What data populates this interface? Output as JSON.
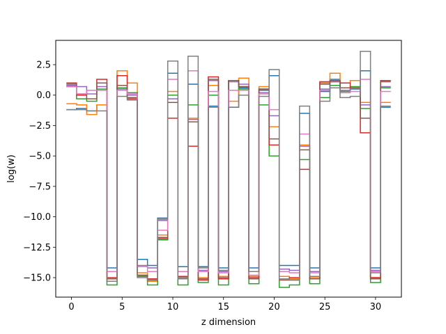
{
  "chart_data": {
    "type": "line",
    "drawstyle": "steps-mid",
    "title": "",
    "xlabel": "z dimension",
    "ylabel": "log(w)",
    "xlim": [
      -1.55,
      32.55
    ],
    "ylim": [
      -16.6,
      4.5
    ],
    "xticks": [
      0,
      5,
      10,
      15,
      20,
      25,
      30
    ],
    "yticks": [
      2.5,
      0.0,
      -2.5,
      -5.0,
      -7.5,
      -10.0,
      -12.5,
      -15.0
    ],
    "ytick_labels": [
      "2.5",
      "0.0",
      "−2.5",
      "−5.0",
      "−7.5",
      "−10.0",
      "−12.5",
      "−15.0"
    ],
    "grid": false,
    "x": [
      0,
      1,
      2,
      3,
      4,
      5,
      6,
      7,
      8,
      9,
      10,
      11,
      12,
      13,
      14,
      15,
      16,
      17,
      18,
      19,
      20,
      21,
      22,
      23,
      24,
      25,
      26,
      27,
      28,
      29,
      30,
      31
    ],
    "series": [
      {
        "color": "#1f77b4",
        "values": [
          -1.2,
          -1.1,
          -1.3,
          -0.8,
          -14.2,
          0.6,
          0.2,
          -13.5,
          -14.0,
          -10.1,
          1.8,
          -14.1,
          0.9,
          -14.1,
          -0.9,
          -14.2,
          -1.0,
          0.6,
          -14.2,
          0.4,
          1.6,
          -14.0,
          -14.0,
          -1.5,
          -14.2,
          0.3,
          1.3,
          0.4,
          0.5,
          2.0,
          -14.2,
          -1.0
        ]
      },
      {
        "color": "#ff7f0e",
        "values": [
          -0.7,
          -0.8,
          -1.6,
          -0.8,
          -15.3,
          2.0,
          1.0,
          -14.6,
          -15.3,
          -11.5,
          0.3,
          -15.1,
          -1.9,
          -15.0,
          0.8,
          -14.9,
          -0.5,
          1.4,
          -14.9,
          0.7,
          -2.6,
          -14.9,
          -15.1,
          -4.1,
          -15.0,
          1.0,
          1.8,
          1.0,
          1.2,
          -0.6,
          -15.0,
          -0.6
        ]
      },
      {
        "color": "#2ca02c",
        "values": [
          0.7,
          -0.3,
          -0.5,
          0.5,
          -15.6,
          0.6,
          0.2,
          -14.9,
          -15.6,
          -11.9,
          0.0,
          -15.6,
          -0.8,
          -15.4,
          0.0,
          -15.6,
          1.2,
          0.5,
          -15.5,
          -0.8,
          -5.0,
          -15.8,
          -15.6,
          -5.3,
          -15.5,
          -0.2,
          0.8,
          0.3,
          0.7,
          -1.1,
          -15.4,
          0.6
        ]
      },
      {
        "color": "#d62728",
        "values": [
          1.0,
          0.0,
          0.4,
          1.3,
          -15.0,
          1.6,
          -0.3,
          -14.8,
          -15.1,
          -11.8,
          -1.9,
          -14.9,
          -4.2,
          -15.2,
          1.5,
          -15.1,
          1.2,
          0.7,
          -15.0,
          0.5,
          -4.1,
          -15.1,
          -15.0,
          -6.1,
          -15.1,
          1.1,
          1.1,
          1.0,
          0.6,
          -3.1,
          -15.0,
          1.2
        ]
      },
      {
        "color": "#9467bd",
        "values": [
          0.8,
          0.7,
          0.1,
          0.7,
          -14.5,
          0.5,
          0.0,
          -14.0,
          -14.2,
          -10.3,
          -0.3,
          -14.5,
          -2.0,
          -14.4,
          1.2,
          -14.5,
          1.1,
          0.9,
          -14.5,
          0.2,
          -1.7,
          -14.3,
          -14.4,
          -4.2,
          -14.5,
          0.5,
          1.1,
          0.4,
          0.6,
          -0.8,
          -14.4,
          0.7
        ]
      },
      {
        "color": "#8c564b",
        "values": [
          0.9,
          0.1,
          -0.3,
          1.0,
          -15.1,
          0.8,
          -0.2,
          -14.8,
          -15.2,
          -11.7,
          -0.6,
          -15.0,
          -2.2,
          -15.1,
          1.3,
          -15.0,
          1.2,
          0.7,
          -15.1,
          0.5,
          -3.6,
          -15.2,
          -15.2,
          -4.5,
          -15.1,
          0.9,
          1.2,
          0.6,
          0.6,
          -1.9,
          -15.1,
          1.1
        ]
      },
      {
        "color": "#e377c2",
        "values": [
          0.7,
          0.1,
          0.4,
          0.4,
          -14.5,
          0.4,
          0.1,
          -14.1,
          -14.5,
          -11.1,
          1.3,
          -14.5,
          2.0,
          -14.5,
          0.3,
          -14.6,
          0.4,
          0.4,
          -14.8,
          0.1,
          -1.2,
          -14.5,
          -14.6,
          -3.2,
          -14.6,
          0.4,
          0.6,
          0.2,
          0.3,
          1.3,
          -14.5,
          0.3
        ]
      },
      {
        "color": "#7f7f7f",
        "values": [
          -1.2,
          -1.2,
          -1.3,
          -1.3,
          -15.3,
          -0.1,
          -0.4,
          -15.0,
          -15.2,
          -10.2,
          2.8,
          -15.1,
          3.2,
          -14.2,
          -1.0,
          -14.4,
          -1.0,
          0.0,
          -14.5,
          -0.1,
          2.1,
          -15.1,
          -15.2,
          -0.9,
          -14.9,
          -0.5,
          0.6,
          -0.2,
          -0.1,
          3.6,
          -14.6,
          -0.9
        ]
      }
    ]
  }
}
